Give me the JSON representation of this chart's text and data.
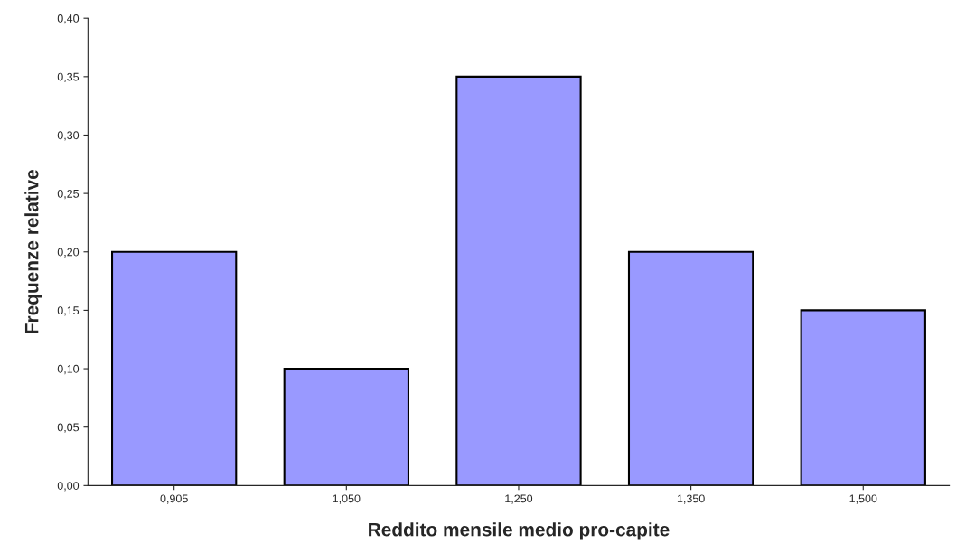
{
  "chart_data": {
    "type": "bar",
    "xlabel": "Reddito mensile medio pro-capite",
    "ylabel": "Frequenze relative",
    "categories": [
      "0,905",
      "1,050",
      "1,250",
      "1,350",
      "1,500"
    ],
    "values": [
      0.2,
      0.1,
      0.35,
      0.2,
      0.15
    ],
    "color": "#9999ff",
    "ylim": [
      0,
      0.4
    ],
    "yticks": [
      {
        "value": 0,
        "label": "0,00"
      },
      {
        "value": 0.05,
        "label": "0,05"
      },
      {
        "value": 0.1,
        "label": "0,10"
      },
      {
        "value": 0.15,
        "label": "0,15"
      },
      {
        "value": 0.2,
        "label": "0,20"
      },
      {
        "value": 0.25,
        "label": "0,25"
      },
      {
        "value": 0.3,
        "label": "0,30"
      },
      {
        "value": 0.35,
        "label": "0,35"
      },
      {
        "value": 0.4,
        "label": "0,40"
      }
    ],
    "grid": false,
    "legend": false
  }
}
